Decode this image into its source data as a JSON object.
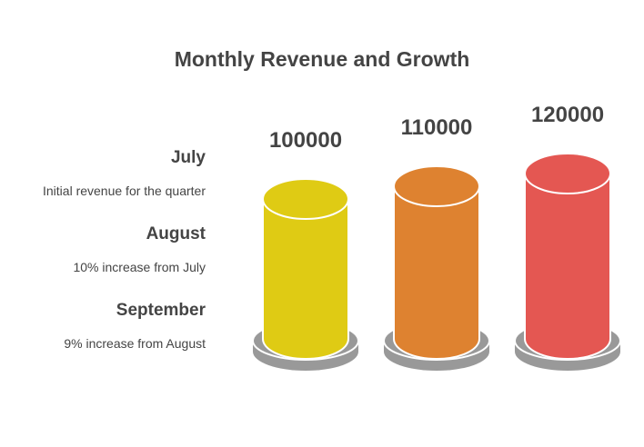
{
  "chart_data": {
    "type": "bar",
    "title": "Monthly Revenue and Growth",
    "categories": [
      "July",
      "August",
      "September"
    ],
    "values": [
      100000,
      110000,
      120000
    ],
    "descriptions": [
      "Initial revenue for the quarter",
      "10% increase from July",
      "9% increase from August"
    ],
    "colors": [
      "#DFCB14",
      "#DE8230",
      "#E45752"
    ],
    "xlabel": "",
    "ylabel": "",
    "grid": false,
    "legend": "left"
  },
  "colors": {
    "text": "#444444",
    "pedestal": "#999999"
  }
}
